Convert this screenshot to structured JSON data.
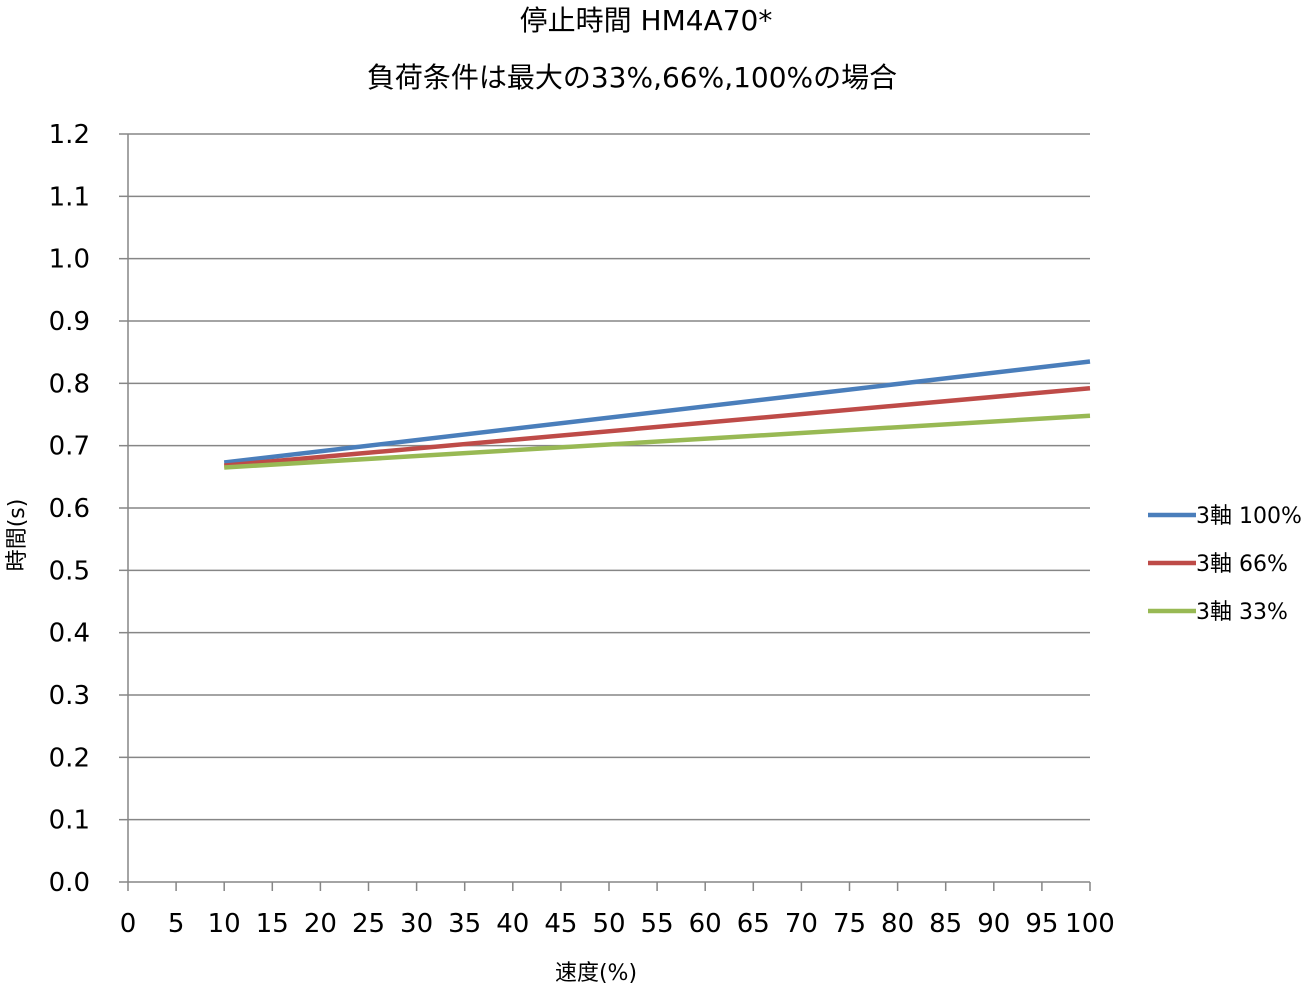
{
  "chart_data": {
    "type": "line",
    "title": "停止時間 HM4A70*",
    "subtitle": "負荷条件は最大の33%,66%,100%の場合",
    "xlabel": "速度(%)",
    "ylabel": "時間(s)",
    "xlim": [
      0,
      100
    ],
    "ylim": [
      0,
      1.2
    ],
    "x_ticks": [
      "0",
      "5",
      "10",
      "15",
      "20",
      "25",
      "30",
      "35",
      "40",
      "45",
      "50",
      "55",
      "60",
      "65",
      "70",
      "75",
      "80",
      "85",
      "90",
      "95",
      "100"
    ],
    "y_ticks": [
      "0.0",
      "0.1",
      "0.2",
      "0.3",
      "0.4",
      "0.5",
      "0.6",
      "0.7",
      "0.8",
      "0.9",
      "1.0",
      "1.1",
      "1.2"
    ],
    "grid": "horizontal",
    "legend_position": "right",
    "x": [
      10,
      100
    ],
    "series": [
      {
        "name": "3軸 100%",
        "color": "#4a7ebb",
        "values": [
          0.673,
          0.835
        ]
      },
      {
        "name": "3軸 66%",
        "color": "#be4b48",
        "values": [
          0.668,
          0.792
        ]
      },
      {
        "name": "3軸 33%",
        "color": "#98b954",
        "values": [
          0.665,
          0.748
        ]
      }
    ]
  }
}
